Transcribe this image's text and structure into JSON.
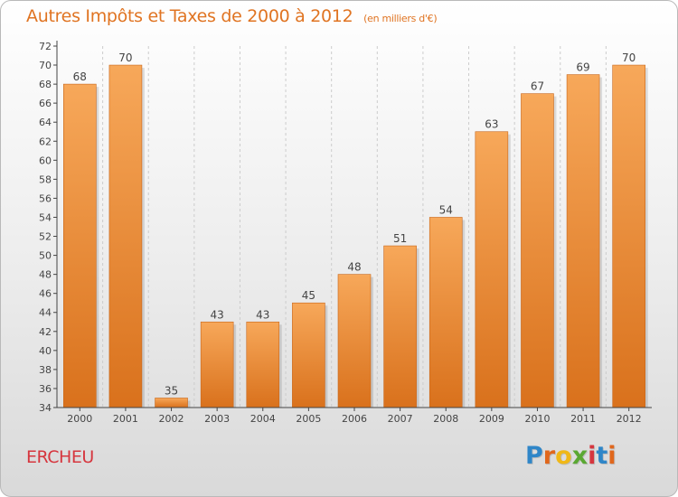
{
  "title": "Autres Impôts et Taxes de 2000 à 2012",
  "subtitle": "(en milliers d'€)",
  "commune": "ERCHEU",
  "brand": {
    "letters": [
      "P",
      "r",
      "o",
      "x",
      "i",
      "t",
      "i"
    ],
    "colors": [
      "#2f86c8",
      "#e0671c",
      "#f0b818",
      "#5aa832",
      "#d6363e",
      "#2f86c8",
      "#e0671c"
    ]
  },
  "colors": {
    "bar_top": "#f7a85a",
    "bar_bottom": "#d9711c",
    "axis": "#444444",
    "grid": "#cccccc",
    "title": "#e07422",
    "commune": "#d6363e"
  },
  "chart_data": {
    "type": "bar",
    "categories": [
      "2000",
      "2001",
      "2002",
      "2003",
      "2004",
      "2005",
      "2006",
      "2007",
      "2008",
      "2009",
      "2010",
      "2011",
      "2012"
    ],
    "values": [
      68,
      70,
      35,
      43,
      43,
      45,
      48,
      51,
      54,
      63,
      67,
      69,
      70
    ],
    "value_labels": [
      "68",
      "70",
      "35",
      "43",
      "43",
      "45",
      "48",
      "51",
      "54",
      "63",
      "67",
      "69",
      "70"
    ],
    "yticks": [
      "34",
      "36",
      "38",
      "40",
      "42",
      "44",
      "46",
      "48",
      "50",
      "52",
      "54",
      "56",
      "58",
      "60",
      "62",
      "64",
      "66",
      "68",
      "70",
      "72"
    ],
    "ylim": [
      34,
      72
    ],
    "grid": "vertical dashed lines between categories",
    "legend": "none"
  }
}
